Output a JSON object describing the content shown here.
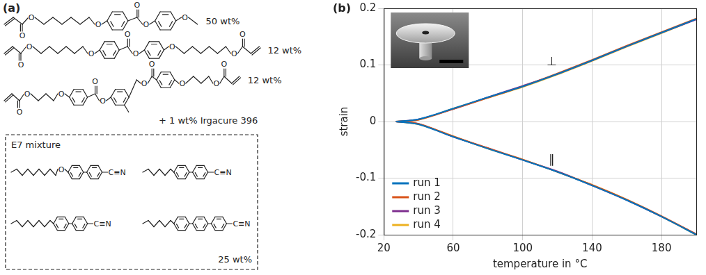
{
  "panel_a": {
    "label": "(a)",
    "monomers": [
      {
        "fraction": "50 wt%"
      },
      {
        "fraction": "12 wt%"
      },
      {
        "fraction": "12 wt%"
      }
    ],
    "initiator": "+ 1 wt% Irgacure 396",
    "mixture": {
      "title": "E7 mixture",
      "fraction": "25 wt%"
    },
    "atom_labels": {
      "oxygen": "O",
      "nitrile": "C≡N"
    }
  },
  "panel_b_label": "(b)",
  "chart_data": {
    "type": "line",
    "x_label": "temperature in °C",
    "y_label": "strain",
    "x": [
      27,
      40,
      60,
      80,
      100,
      120,
      140,
      160,
      180,
      200
    ],
    "series": [
      {
        "name": "run 1",
        "color": "#0072bd",
        "perpendicular": [
          0,
          0.004,
          0.023,
          0.043,
          0.062,
          0.084,
          0.108,
          0.133,
          0.157,
          0.181
        ],
        "parallel": [
          0,
          -0.005,
          -0.027,
          -0.048,
          -0.068,
          -0.089,
          -0.113,
          -0.139,
          -0.168,
          -0.2
        ]
      },
      {
        "name": "run 2",
        "color": "#d95319",
        "perpendicular": [
          0,
          0.003,
          0.022,
          0.042,
          0.062,
          0.085,
          0.109,
          0.134,
          0.158,
          0.182
        ],
        "parallel": [
          0,
          -0.004,
          -0.026,
          -0.047,
          -0.067,
          -0.089,
          -0.112,
          -0.138,
          -0.167,
          -0.199
        ]
      },
      {
        "name": "run 3",
        "color": "#7e2f8e",
        "perpendicular": [
          0,
          0.004,
          0.022,
          0.043,
          0.063,
          0.084,
          0.108,
          0.133,
          0.157,
          0.18
        ],
        "parallel": [
          0,
          -0.004,
          -0.027,
          -0.047,
          -0.068,
          -0.088,
          -0.113,
          -0.139,
          -0.168,
          -0.199
        ]
      },
      {
        "name": "run 4",
        "color": "#edb120",
        "perpendicular": [
          0,
          0.003,
          0.023,
          0.042,
          0.061,
          0.083,
          0.107,
          0.132,
          0.156,
          0.181
        ],
        "parallel": [
          0,
          -0.005,
          -0.026,
          -0.048,
          -0.067,
          -0.089,
          -0.112,
          -0.138,
          -0.168,
          -0.2
        ]
      }
    ],
    "annotations": {
      "perpendicular": "⊥",
      "parallel": "∥"
    },
    "xlim": [
      20,
      200
    ],
    "xticks": [
      20,
      60,
      100,
      140,
      180
    ],
    "ylim": [
      -0.2,
      0.2
    ],
    "yticks": [
      -0.2,
      -0.1,
      0,
      0.1,
      0.2
    ],
    "grid": true,
    "legend": "lower left"
  }
}
